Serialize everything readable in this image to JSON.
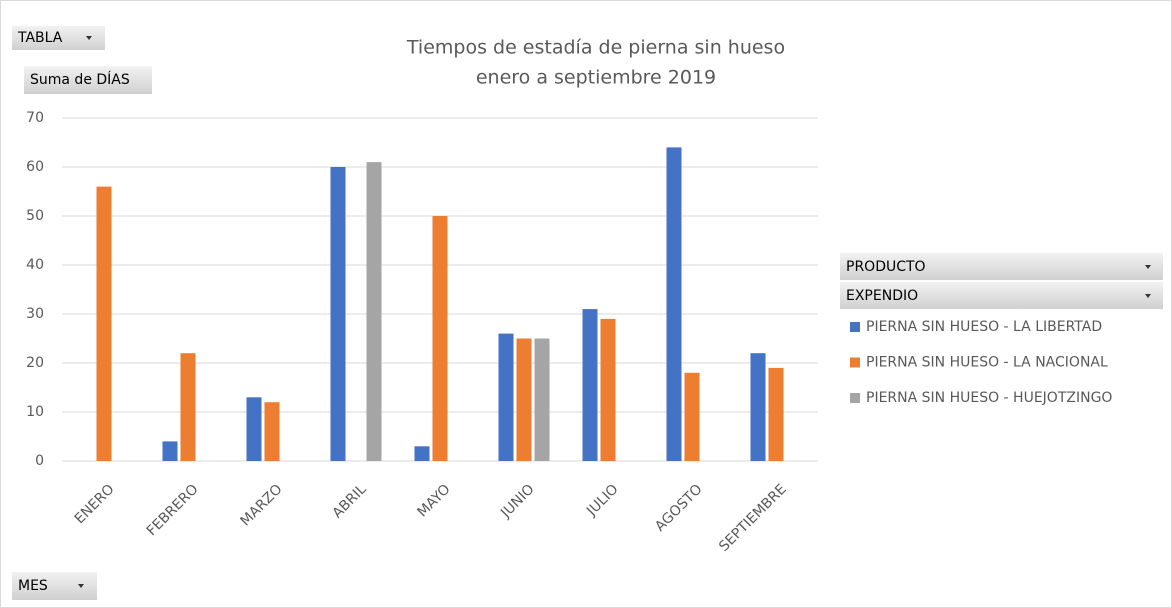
{
  "chart_data": {
    "type": "bar",
    "title": "Tiempos de estadía de pierna sin hueso",
    "subtitle": "enero a septiembre 2019",
    "filter_field": "TABLA",
    "value_field": "Suma de DÍAS",
    "axis_field": "MES",
    "legend_fields": [
      "PRODUCTO",
      "EXPENDIO"
    ],
    "categories": [
      "ENERO",
      "FEBRERO",
      "MARZO",
      "ABRIL",
      "MAYO",
      "JUNIO",
      "JULIO",
      "AGOSTO",
      "SEPTIEMBRE"
    ],
    "series": [
      {
        "name": "PIERNA SIN HUESO - LA LIBERTAD",
        "color": "#4472c4",
        "values": [
          null,
          4,
          13,
          60,
          3,
          26,
          31,
          64,
          22
        ]
      },
      {
        "name": "PIERNA SIN HUESO - LA NACIONAL",
        "color": "#ed7d31",
        "values": [
          56,
          22,
          12,
          null,
          50,
          25,
          29,
          18,
          19
        ]
      },
      {
        "name": "PIERNA SIN HUESO - HUEJOTZINGO",
        "color": "#a5a5a5",
        "values": [
          null,
          null,
          null,
          61,
          null,
          25,
          null,
          null,
          null
        ]
      }
    ],
    "ylim": [
      0,
      70
    ],
    "yticks": [
      0,
      10,
      20,
      30,
      40,
      50,
      60,
      70
    ],
    "grid": true,
    "legend": "right"
  }
}
